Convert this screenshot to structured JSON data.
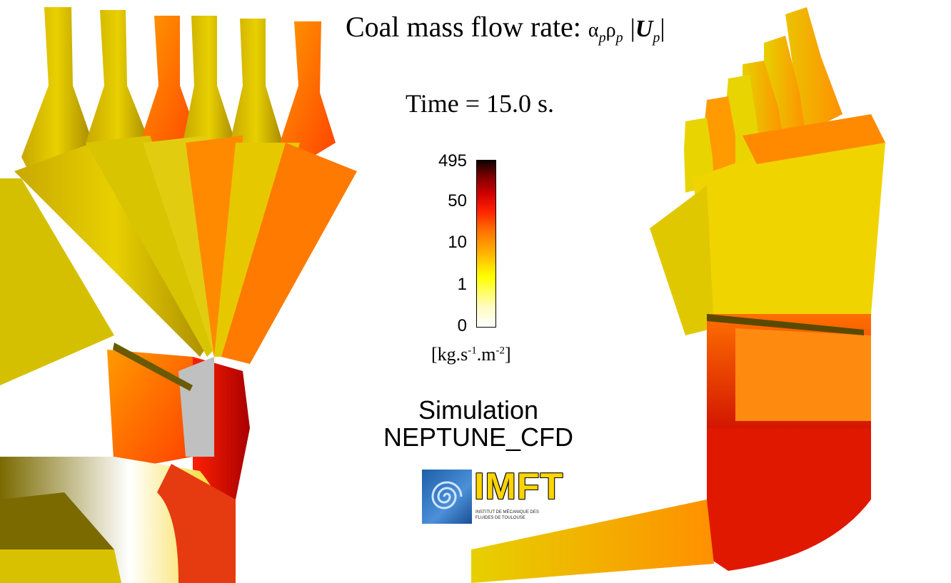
{
  "title": {
    "text": "Coal mass flow rate:",
    "alpha": "α",
    "rho": "ρ",
    "sub_p": "p",
    "U": "U",
    "bar": "|"
  },
  "time_label": "Time = 15.0 s.",
  "colorbar": {
    "ticks": [
      "495",
      "50",
      "10",
      "1",
      "0"
    ],
    "unit_base": "[kg.s",
    "unit_exp1": "-1",
    "unit_mid": ".m",
    "unit_exp2": "-2",
    "unit_end": "]",
    "colors": [
      "#ffffff",
      "#ffff00",
      "#ff8c00",
      "#ff0000",
      "#8b0000",
      "#000000"
    ]
  },
  "simulation": {
    "line1": "Simulation",
    "line2": "NEPTUNE_CFD"
  },
  "logo": {
    "name": "IMFT",
    "subtitle": "INSTITUT DE MÉCANIQUE DES FLUIDES DE TOULOUSE"
  }
}
